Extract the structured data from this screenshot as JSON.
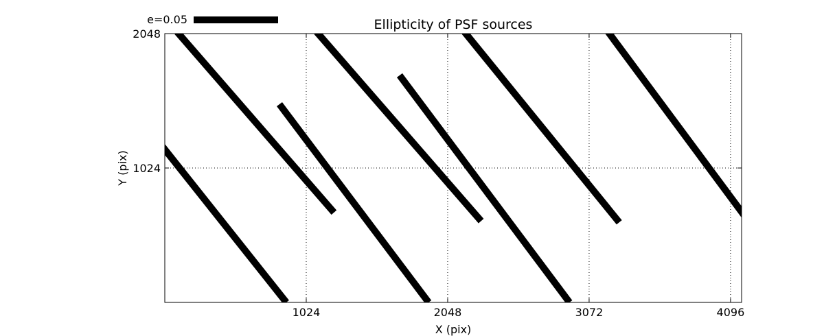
{
  "chart_data": {
    "type": "vector-field",
    "title": "Ellipticity of PSF sources",
    "xlabel": "X (pix)",
    "ylabel": "Y (pix)",
    "xlim": [
      0,
      4176
    ],
    "ylim": [
      0,
      2048
    ],
    "xticks": [
      1024,
      2048,
      3072,
      4096
    ],
    "xtick_labels": [
      "1024",
      "2048",
      "3072",
      "4096"
    ],
    "yticks": [
      1024,
      2048
    ],
    "ytick_labels": [
      "1024",
      "2048"
    ],
    "grid": true,
    "key": {
      "label": "e=0.05",
      "position": "above-top-left"
    },
    "color": "#000000",
    "segments": [
      {
        "x1": -60,
        "y1": 1245,
        "x2": 880,
        "y2": 0
      },
      {
        "x1": 90,
        "y1": 2060,
        "x2": 1225,
        "y2": 685
      },
      {
        "x1": 830,
        "y1": 1510,
        "x2": 1910,
        "y2": 0
      },
      {
        "x1": 1100,
        "y1": 2060,
        "x2": 2290,
        "y2": 620
      },
      {
        "x1": 1700,
        "y1": 1730,
        "x2": 2930,
        "y2": 0
      },
      {
        "x1": 2170,
        "y1": 2060,
        "x2": 3290,
        "y2": 610
      },
      {
        "x1": 3210,
        "y1": 2060,
        "x2": 4260,
        "y2": 570
      }
    ]
  }
}
